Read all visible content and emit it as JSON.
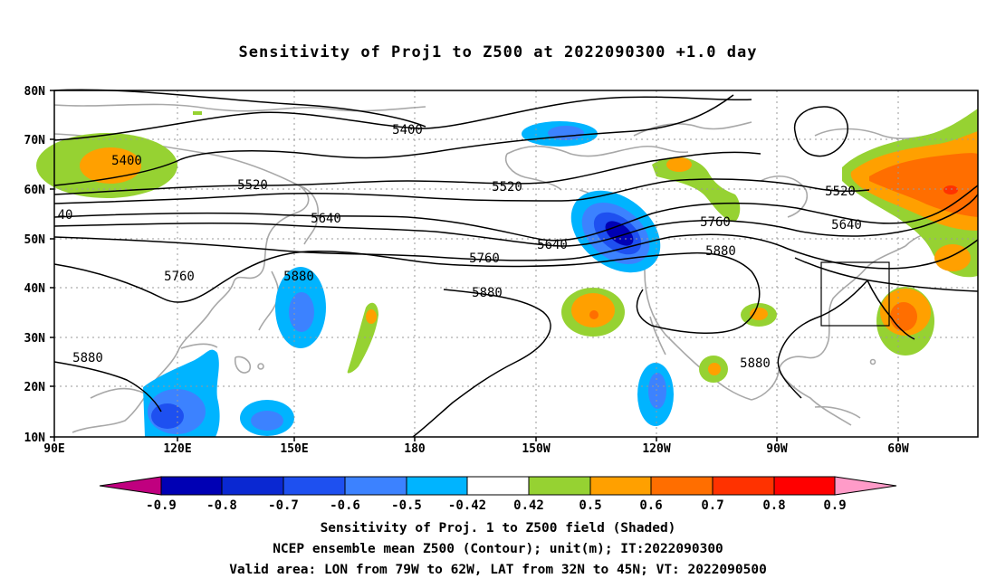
{
  "title": "Sensitivity of Proj1 to Z500 at 2022090300 +1.0 day",
  "axes": {
    "lat_labels": [
      "80N",
      "70N",
      "60N",
      "50N",
      "40N",
      "30N",
      "20N",
      "10N"
    ],
    "lon_labels": [
      "90E",
      "120E",
      "150E",
      "180",
      "150W",
      "120W",
      "90W",
      "60W"
    ]
  },
  "contour_labels": [
    "5400",
    "5400",
    "5520",
    "5520",
    "5520",
    "5640",
    "5640",
    "5640",
    "40",
    "5760",
    "5760",
    "5760",
    "5880",
    "5880",
    "5880",
    "5880",
    "5880"
  ],
  "colorbar": {
    "labels": [
      "-0.9",
      "-0.8",
      "-0.7",
      "-0.6",
      "-0.5",
      "-0.42",
      "0.42",
      "0.5",
      "0.6",
      "0.7",
      "0.8",
      "0.9"
    ],
    "colors": [
      "#c0007f",
      "#0000b4",
      "#0a28d2",
      "#1e50f0",
      "#3c82ff",
      "#00b4ff",
      "#ffffff",
      "#96d232",
      "#ffa000",
      "#ff6e00",
      "#ff3200",
      "#ff0000",
      "#ff9bc8"
    ]
  },
  "captions": {
    "line1": "Sensitivity of Proj. 1 to Z500 field (Shaded)",
    "line2": "NCEP ensemble mean Z500 (Contour); unit(m); IT:2022090300",
    "line3": "Valid area: LON from 79W to 62W, LAT from 32N to 45N; VT: 2022090500"
  }
}
